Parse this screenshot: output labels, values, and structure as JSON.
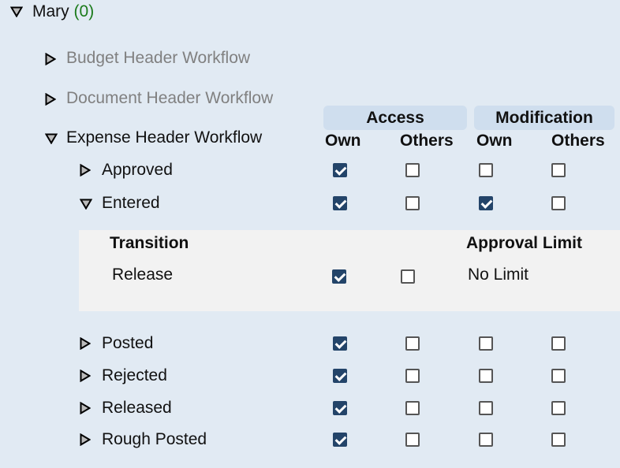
{
  "user": {
    "name": "Mary",
    "count": "(0)",
    "expanded": true
  },
  "workflows": [
    {
      "label": "Budget Header Workflow",
      "expanded": false,
      "disabled": true
    },
    {
      "label": "Document Header Workflow",
      "expanded": false,
      "disabled": true
    },
    {
      "label": "Expense Header Workflow",
      "expanded": true,
      "disabled": false
    }
  ],
  "columns": {
    "access": "Access",
    "modification": "Modification",
    "own": "Own",
    "others": "Others"
  },
  "states": [
    {
      "label": "Approved",
      "expanded": false,
      "checks": [
        true,
        false,
        false,
        false
      ]
    },
    {
      "label": "Entered",
      "expanded": true,
      "checks": [
        true,
        false,
        true,
        false
      ]
    },
    {
      "label": "Posted",
      "expanded": false,
      "checks": [
        true,
        false,
        false,
        false
      ]
    },
    {
      "label": "Rejected",
      "expanded": false,
      "checks": [
        true,
        false,
        false,
        false
      ]
    },
    {
      "label": "Released",
      "expanded": false,
      "checks": [
        true,
        false,
        false,
        false
      ]
    },
    {
      "label": "Rough Posted",
      "expanded": false,
      "checks": [
        true,
        false,
        false,
        false
      ]
    }
  ],
  "transitions": {
    "header": "Transition",
    "limit_header": "Approval Limit",
    "rows": [
      {
        "label": "Release",
        "checks": [
          true,
          false
        ],
        "limit": "No Limit"
      }
    ]
  },
  "colors": {
    "background": "#e1eaf3",
    "checked": "#234469",
    "header": "#cfdeee",
    "panel": "#f2f2f2",
    "count": "#1a7a1a"
  }
}
